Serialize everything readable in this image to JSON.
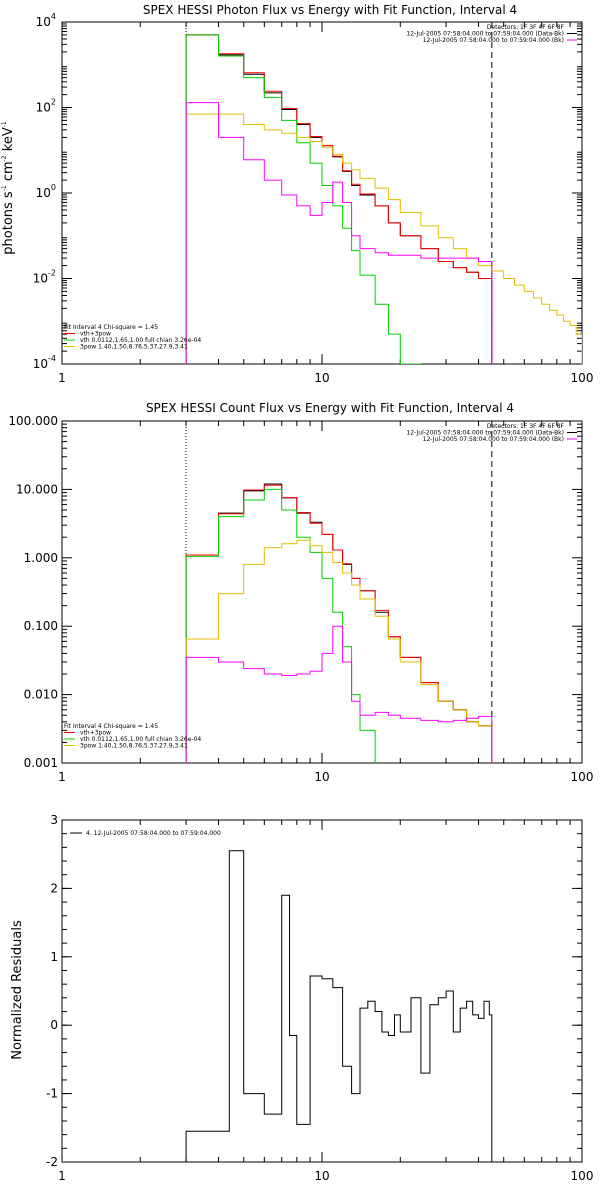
{
  "chart_data": [
    {
      "type": "line",
      "title": "SPEX HESSI Photon Flux vs Energy with Fit Function, Interval 4",
      "ylabel": "photons s^-1 cm^-2 keV^-1",
      "ylabel_parts": [
        "photons s",
        "-1",
        " cm",
        "-2",
        " keV",
        "-1"
      ],
      "xlog": true,
      "ylog": true,
      "xlim": [
        1,
        100
      ],
      "ylim": [
        0.0001,
        10000
      ],
      "x_ticks": [
        1,
        10,
        100
      ],
      "x_tick_labels": [
        "1",
        "10",
        "100"
      ],
      "y_ticks": [
        0.0001,
        0.01,
        1,
        100,
        10000
      ],
      "y_tick_labels": [
        [
          "10",
          "-4"
        ],
        [
          "10",
          "-2"
        ],
        [
          "10",
          "0"
        ],
        [
          "10",
          "2"
        ],
        [
          "10",
          "4"
        ]
      ],
      "fit_range": [
        3,
        45
      ],
      "legend_top_right": [
        "Detectors: 1F 3F 4F 6F 8F",
        "12-Jul-2005 07:58:04.000 to 07:59:04.000 (Data-Bk)",
        "12-Jul-2005 07:58:04.000 to 07:59:04.000 (Bk)"
      ],
      "legend_bottom_left": [
        "Fit Interval 4   Chi-square = 1.45",
        "vth+3pow",
        "vth 0.0112,1.65,1.00  full chian 3.26e-04",
        "3pow 1.40,1.50,8.76,5.37,27.9,3.41"
      ],
      "series": [
        {
          "name": "Data-Bk",
          "color": "#000000",
          "edges": [
            3,
            4,
            5,
            6,
            7,
            8,
            9,
            10,
            11,
            12,
            13,
            14,
            16,
            18,
            20,
            24,
            28,
            32,
            36,
            40,
            45
          ],
          "values": [
            5000,
            1700,
            600,
            220,
            90,
            40,
            20,
            12,
            7,
            3.2,
            1.5,
            0.9,
            0.5,
            0.2,
            0.1,
            0.05,
            0.025,
            0.018,
            0.014,
            0.01
          ]
        },
        {
          "name": "vth+3pow",
          "color": "#ff0000",
          "edges": [
            3,
            4,
            5,
            6,
            7,
            8,
            9,
            10,
            11,
            12,
            13,
            14,
            16,
            18,
            20,
            24,
            28,
            32,
            36,
            40,
            45
          ],
          "values": [
            5000,
            1800,
            650,
            240,
            95,
            42,
            21,
            13,
            7.2,
            3.3,
            1.6,
            0.95,
            0.5,
            0.2,
            0.1,
            0.05,
            0.025,
            0.018,
            0.014,
            0.01
          ]
        },
        {
          "name": "vth",
          "color": "#00d000",
          "edges": [
            3,
            4,
            5,
            6,
            7,
            8,
            9,
            10,
            11,
            12,
            13,
            14,
            16,
            18,
            20,
            24
          ],
          "values": [
            5000,
            1600,
            500,
            170,
            50,
            15,
            5,
            1.5,
            0.5,
            0.15,
            0.045,
            0.012,
            0.0025,
            0.0005,
            0.0001
          ]
        },
        {
          "name": "3pow",
          "color": "#e0c000",
          "edges": [
            3,
            4,
            5,
            6,
            7,
            8,
            9,
            10,
            11,
            12,
            13,
            14,
            16,
            18,
            20,
            24,
            28,
            32,
            36,
            40,
            45,
            50,
            55,
            60,
            65,
            70,
            75,
            80,
            85,
            90,
            95,
            100
          ],
          "values": [
            70,
            70,
            40,
            30,
            25,
            20,
            16,
            12,
            8,
            5,
            3.5,
            2.2,
            1.3,
            0.7,
            0.35,
            0.17,
            0.09,
            0.05,
            0.03,
            0.02,
            0.015,
            0.01,
            0.007,
            0.005,
            0.0035,
            0.0025,
            0.0018,
            0.0014,
            0.001,
            0.0008,
            0.0005
          ]
        },
        {
          "name": "Bk",
          "color": "#ff00ff",
          "edges": [
            3,
            4,
            5,
            6,
            7,
            8,
            9,
            10,
            11,
            12,
            13,
            14,
            16,
            18,
            20,
            24,
            28,
            32,
            36,
            40,
            45
          ],
          "values": [
            130,
            20,
            6,
            2,
            0.9,
            0.5,
            0.3,
            0.6,
            1.8,
            0.6,
            0.1,
            0.05,
            0.04,
            0.035,
            0.035,
            0.03,
            0.03,
            0.03,
            0.03,
            0.025
          ]
        }
      ]
    },
    {
      "type": "line",
      "title": "SPEX HESSI Count Flux vs Energy with Fit Function, Interval 4",
      "xlog": true,
      "ylog": true,
      "xlim": [
        1,
        100
      ],
      "ylim": [
        0.001,
        100
      ],
      "x_ticks": [
        1,
        10,
        100
      ],
      "x_tick_labels": [
        "1",
        "10",
        "100"
      ],
      "y_ticks": [
        0.001,
        0.01,
        0.1,
        1,
        10,
        100
      ],
      "y_tick_labels": [
        "0.001",
        "0.010",
        "0.100",
        "1.000",
        "10.000",
        "100.000"
      ],
      "fit_range": [
        3,
        45
      ],
      "legend_top_right": [
        "Detectors: 1F 3F 4F 6F 8F",
        "12-Jul-2005 07:58:04.000 to 07:59:04.000 (Data-Bk)",
        "12-Jul-2005 07:58:04.000 to 07:59:04.000 (Bk)"
      ],
      "legend_bottom_left": [
        "Fit Interval 4   Chi-square = 1.45",
        "vth+3pow",
        "vth 0.0112,1.65,1.00  full chian 3.26e-04",
        "3pow 1.40,1.50,8.76,5.37,27.9,3.41"
      ],
      "series": [
        {
          "name": "Data-Bk",
          "color": "#000000",
          "edges": [
            3,
            4,
            5,
            6,
            7,
            8,
            9,
            10,
            11,
            12,
            13,
            14,
            16,
            18,
            20,
            24,
            28,
            32,
            36,
            40,
            45
          ],
          "values": [
            1.1,
            4.5,
            9.5,
            12,
            7.5,
            4.5,
            3.3,
            2.2,
            1.3,
            0.8,
            0.5,
            0.33,
            0.16,
            0.07,
            0.035,
            0.015,
            0.008,
            0.006,
            0.004,
            0.0035
          ]
        },
        {
          "name": "vth+3pow",
          "color": "#ff0000",
          "edges": [
            3,
            4,
            5,
            6,
            7,
            8,
            9,
            10,
            11,
            12,
            13,
            14,
            16,
            18,
            20,
            24,
            28,
            32,
            36,
            40,
            45
          ],
          "values": [
            1.1,
            4.4,
            9.8,
            11.5,
            7.6,
            4.6,
            3.2,
            2.2,
            1.3,
            0.82,
            0.5,
            0.33,
            0.17,
            0.07,
            0.035,
            0.015,
            0.008,
            0.006,
            0.004,
            0.0035
          ]
        },
        {
          "name": "vth",
          "color": "#00d000",
          "edges": [
            3,
            4,
            5,
            6,
            7,
            8,
            9,
            10,
            11,
            12,
            13,
            14,
            16
          ],
          "values": [
            1.05,
            4.0,
            7.0,
            10.0,
            5.0,
            2.0,
            1.2,
            0.5,
            0.16,
            0.05,
            0.01,
            0.003
          ]
        },
        {
          "name": "3pow",
          "color": "#e0c000",
          "edges": [
            3,
            4,
            5,
            6,
            7,
            8,
            9,
            10,
            11,
            12,
            13,
            14,
            16,
            18,
            20,
            24,
            28,
            32,
            36,
            40,
            45
          ],
          "values": [
            0.065,
            0.3,
            0.8,
            1.4,
            1.6,
            1.8,
            1.5,
            1.2,
            0.85,
            0.6,
            0.4,
            0.25,
            0.14,
            0.065,
            0.03,
            0.014,
            0.008,
            0.006,
            0.004,
            0.0035
          ]
        },
        {
          "name": "Bk",
          "color": "#ff00ff",
          "edges": [
            3,
            4,
            5,
            6,
            7,
            8,
            9,
            10,
            11,
            12,
            13,
            14,
            16,
            18,
            20,
            24,
            28,
            32,
            36,
            40,
            45
          ],
          "values": [
            0.035,
            0.03,
            0.024,
            0.02,
            0.019,
            0.02,
            0.022,
            0.04,
            0.1,
            0.03,
            0.008,
            0.005,
            0.0055,
            0.005,
            0.0045,
            0.0042,
            0.004,
            0.0042,
            0.0045,
            0.0048
          ]
        }
      ]
    },
    {
      "type": "line",
      "ylabel": "Normalized Residuals",
      "xlog": true,
      "ylog": false,
      "xlim": [
        1,
        100
      ],
      "ylim": [
        -2,
        3
      ],
      "x_ticks": [
        1,
        10,
        100
      ],
      "x_tick_labels": [
        "1",
        "10",
        "100"
      ],
      "y_ticks": [
        -2,
        -1,
        0,
        1,
        2,
        3
      ],
      "y_tick_labels": [
        "-2",
        "-1",
        "0",
        "1",
        "2",
        "3"
      ],
      "legend_top_left": [
        "4. 12-Jul-2005 07:58:04.000 to 07:59:04.000"
      ],
      "series": [
        {
          "name": "4. 12-Jul-2005 07:58:04.000 to 07:59:04.000",
          "color": "#000000",
          "edges": [
            3,
            4,
            4.4,
            5,
            6,
            7,
            7.5,
            8,
            9,
            10,
            11,
            12,
            13,
            14,
            15,
            16,
            17,
            18,
            19,
            20,
            22,
            24,
            26,
            28,
            30,
            32,
            34,
            36,
            38,
            40,
            42,
            44,
            45
          ],
          "values": [
            -1.55,
            -1.55,
            2.55,
            -1.0,
            -1.3,
            1.9,
            -0.15,
            -1.45,
            0.72,
            0.68,
            0.55,
            -0.6,
            -1.0,
            0.25,
            0.35,
            0.2,
            -0.1,
            -0.15,
            0.15,
            -0.1,
            0.4,
            -0.7,
            0.3,
            0.4,
            0.5,
            -0.1,
            0.25,
            0.35,
            0.15,
            0.1,
            0.35,
            0.15
          ]
        }
      ]
    }
  ]
}
